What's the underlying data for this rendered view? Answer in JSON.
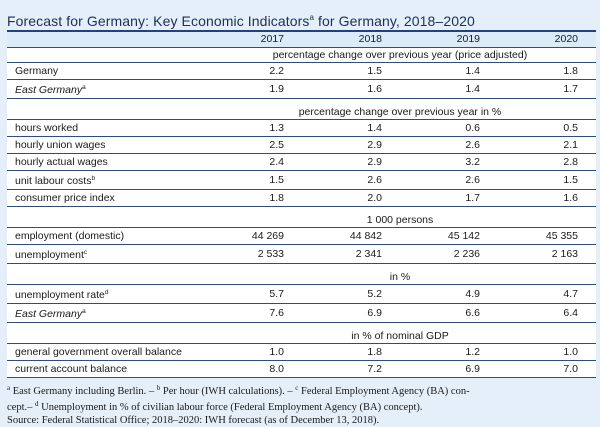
{
  "title": {
    "text": "Forecast for Germany: Key Economic Indicators",
    "sup": "a",
    "suffix": " for Germany, 2018–2020"
  },
  "years": [
    "2017",
    "2018",
    "2019",
    "2020"
  ],
  "sections": [
    {
      "unit": "percentage change over previous year (price adjusted)",
      "rows": [
        {
          "label": "Germany",
          "italic": false,
          "sup": "",
          "values": [
            "2.2",
            "1.5",
            "1.4",
            "1.8"
          ]
        },
        {
          "label": "East Germany",
          "italic": true,
          "sup": "a",
          "values": [
            "1.9",
            "1.6",
            "1.4",
            "1.7"
          ]
        }
      ]
    },
    {
      "unit": "percentage change over previous year in %",
      "rows": [
        {
          "label": "hours worked",
          "italic": false,
          "sup": "",
          "values": [
            "1.3",
            "1.4",
            "0.6",
            "0.5"
          ]
        },
        {
          "label": "hourly union wages",
          "italic": false,
          "sup": "",
          "values": [
            "2.5",
            "2.9",
            "2.6",
            "2.1"
          ]
        },
        {
          "label": "hourly actual wages",
          "italic": false,
          "sup": "",
          "values": [
            "2.4",
            "2.9",
            "3.2",
            "2.8"
          ]
        },
        {
          "label": "unit labour costs",
          "italic": false,
          "sup": "b",
          "values": [
            "1.5",
            "2.6",
            "2.6",
            "1.5"
          ]
        },
        {
          "label": "consumer price index",
          "italic": false,
          "sup": "",
          "values": [
            "1.8",
            "2.0",
            "1.7",
            "1.6"
          ]
        }
      ]
    },
    {
      "unit": "1 000 persons",
      "rows": [
        {
          "label": "employment (domestic)",
          "italic": false,
          "sup": "",
          "values": [
            "44 269",
            "44 842",
            "45 142",
            "45 355"
          ]
        },
        {
          "label": "unemployment",
          "italic": false,
          "sup": "c",
          "values": [
            "2 533",
            "2 341",
            "2 236",
            "2 163"
          ]
        }
      ]
    },
    {
      "unit": "in %",
      "rows": [
        {
          "label": "unemployment rate",
          "italic": false,
          "sup": "d",
          "values": [
            "5.7",
            "5.2",
            "4.9",
            "4.7"
          ]
        },
        {
          "label": "East Germany",
          "italic": true,
          "sup": "a",
          "values": [
            "7.6",
            "6.9",
            "6.6",
            "6.4"
          ]
        }
      ]
    },
    {
      "unit": "in % of nominal GDP",
      "rows": [
        {
          "label": "general government overall balance",
          "italic": false,
          "sup": "",
          "values": [
            "1.0",
            "1.8",
            "1.2",
            "1.0"
          ]
        },
        {
          "label": "current account balance",
          "italic": false,
          "sup": "",
          "values": [
            "8.0",
            "7.2",
            "6.9",
            "7.0"
          ]
        }
      ]
    }
  ],
  "footnotes": {
    "a_mark": "a",
    "a_text": " East Germany including Berlin. – ",
    "b_mark": "b",
    "b_text": " Per hour (IWH calculations). – ",
    "c_mark": "c",
    "c_text": " Federal Employment Agency (BA) con-",
    "line2_prefix": "cept.– ",
    "d_mark": "d",
    "d_text": " Unemployment in % of civilian labour force (Federal Employment Agency (BA) concept).",
    "source": "Source: Federal Statistical Office; 2018–2020: IWH forecast (as of December 13, 2018)."
  }
}
